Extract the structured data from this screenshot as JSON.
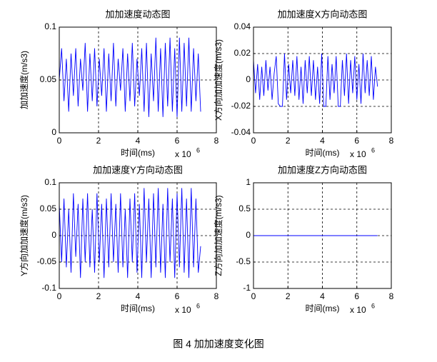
{
  "caption": "图 4  加加速度变化图",
  "chart_data": [
    {
      "type": "line",
      "title": "加加速度动态图",
      "xlabel": "时间(ms)",
      "ylabel": "加加速度(m/s3)",
      "x_multiplier": "x 10",
      "x_exponent": "6",
      "xlim": [
        0,
        8
      ],
      "xticks": [
        0,
        2,
        4,
        6,
        8
      ],
      "ylim": [
        0,
        0.1
      ],
      "yticks": [
        0,
        0.05,
        0.1
      ],
      "grid": true,
      "color": "#0000ff",
      "x": [
        0,
        0.12,
        0.24,
        0.36,
        0.48,
        0.6,
        0.72,
        0.84,
        0.96,
        1.08,
        1.2,
        1.32,
        1.44,
        1.56,
        1.68,
        1.8,
        1.92,
        2.04,
        2.16,
        2.28,
        2.4,
        2.52,
        2.64,
        2.76,
        2.88,
        3,
        3.12,
        3.24,
        3.36,
        3.48,
        3.6,
        3.72,
        3.84,
        3.96,
        4.08,
        4.2,
        4.32,
        4.44,
        4.56,
        4.68,
        4.8,
        4.92,
        5.04,
        5.16,
        5.28,
        5.4,
        5.52,
        5.64,
        5.76,
        5.88,
        6,
        6.12,
        6.24,
        6.36,
        6.48,
        6.6,
        6.72,
        6.84,
        6.96,
        7.08,
        7.2
      ],
      "values": [
        0.05,
        0.08,
        0.03,
        0.07,
        0.02,
        0.075,
        0.035,
        0.08,
        0.025,
        0.07,
        0.04,
        0.085,
        0.02,
        0.075,
        0.03,
        0.08,
        0.025,
        0.07,
        0.035,
        0.08,
        0.02,
        0.075,
        0.03,
        0.085,
        0.025,
        0.07,
        0.04,
        0.08,
        0.02,
        0.075,
        0.03,
        0.085,
        0.025,
        0.07,
        0.035,
        0.08,
        0.02,
        0.085,
        0.015,
        0.075,
        0.03,
        0.09,
        0.02,
        0.08,
        0.015,
        0.085,
        0.025,
        0.09,
        0.02,
        0.08,
        0.015,
        0.09,
        0.02,
        0.085,
        0.025,
        0.09,
        0.02,
        0.08,
        0.03,
        0.075,
        0.02
      ]
    },
    {
      "type": "line",
      "title": "加加速度X方向动态图",
      "xlabel": "时间(ms)",
      "ylabel": "X方向加加速度(m/s3)",
      "x_multiplier": "x 10",
      "x_exponent": "6",
      "xlim": [
        0,
        8
      ],
      "xticks": [
        0,
        2,
        4,
        6,
        8
      ],
      "ylim": [
        -0.04,
        0.04
      ],
      "yticks": [
        -0.04,
        -0.02,
        0,
        0.02,
        0.04
      ],
      "grid": true,
      "color": "#0000ff",
      "x": [
        0,
        0.12,
        0.24,
        0.36,
        0.48,
        0.6,
        0.72,
        0.84,
        0.96,
        1.08,
        1.2,
        1.32,
        1.44,
        1.56,
        1.68,
        1.8,
        1.92,
        2.04,
        2.16,
        2.28,
        2.4,
        2.52,
        2.64,
        2.76,
        2.88,
        3,
        3.12,
        3.24,
        3.36,
        3.48,
        3.6,
        3.72,
        3.84,
        3.96,
        4.08,
        4.2,
        4.32,
        4.44,
        4.56,
        4.68,
        4.8,
        4.92,
        5.04,
        5.16,
        5.28,
        5.4,
        5.52,
        5.64,
        5.76,
        5.88,
        6,
        6.12,
        6.24,
        6.36,
        6.48,
        6.6,
        6.72,
        6.84,
        6.96,
        7.08,
        7.2
      ],
      "values": [
        0.015,
        -0.01,
        0.012,
        -0.015,
        0.01,
        -0.012,
        0.015,
        -0.008,
        0.01,
        -0.015,
        0.005,
        0.018,
        -0.018,
        -0.02,
        -0.02,
        0.02,
        -0.015,
        0.012,
        -0.01,
        0.015,
        -0.012,
        0.018,
        -0.015,
        0.01,
        -0.018,
        0.015,
        -0.01,
        0.018,
        -0.012,
        0.015,
        -0.015,
        0.01,
        -0.018,
        0.02,
        -0.02,
        -0.02,
        0.018,
        -0.015,
        0.012,
        -0.01,
        0.018,
        -0.02,
        -0.02,
        0.015,
        -0.012,
        0.02,
        -0.018,
        0.015,
        -0.01,
        0.018,
        -0.015,
        0.012,
        -0.018,
        0.02,
        -0.01,
        0.015,
        -0.012,
        0.018,
        -0.015,
        0.01,
        -0.005
      ]
    },
    {
      "type": "line",
      "title": "加加速度Y方向动态图",
      "xlabel": "时间(ms)",
      "ylabel": "Y方向加加速度(m/s3)",
      "x_multiplier": "x 10",
      "x_exponent": "6",
      "xlim": [
        0,
        8
      ],
      "xticks": [
        0,
        2,
        4,
        6,
        8
      ],
      "ylim": [
        -0.1,
        0.1
      ],
      "yticks": [
        -0.1,
        -0.05,
        0,
        0.05,
        0.1
      ],
      "grid": true,
      "color": "#0000ff",
      "x": [
        0,
        0.12,
        0.24,
        0.36,
        0.48,
        0.6,
        0.72,
        0.84,
        0.96,
        1.08,
        1.2,
        1.32,
        1.44,
        1.56,
        1.68,
        1.8,
        1.92,
        2.04,
        2.16,
        2.28,
        2.4,
        2.52,
        2.64,
        2.76,
        2.88,
        3,
        3.12,
        3.24,
        3.36,
        3.48,
        3.6,
        3.72,
        3.84,
        3.96,
        4.08,
        4.2,
        4.32,
        4.44,
        4.56,
        4.68,
        4.8,
        4.92,
        5.04,
        5.16,
        5.28,
        5.4,
        5.52,
        5.64,
        5.76,
        5.88,
        6,
        6.12,
        6.24,
        6.36,
        6.48,
        6.6,
        6.72,
        6.84,
        6.96,
        7.08,
        7.2
      ],
      "values": [
        0.06,
        -0.05,
        0.07,
        -0.06,
        0.05,
        -0.07,
        0.08,
        -0.04,
        0.06,
        -0.08,
        0.07,
        -0.05,
        0.08,
        -0.06,
        0.05,
        -0.07,
        0.08,
        -0.05,
        0.06,
        -0.08,
        0.07,
        -0.06,
        0.08,
        -0.05,
        0.06,
        -0.07,
        0.08,
        -0.06,
        0.05,
        -0.08,
        0.07,
        -0.05,
        0.08,
        -0.07,
        0.06,
        -0.08,
        0.09,
        -0.05,
        0.07,
        -0.08,
        0.08,
        -0.06,
        0.09,
        -0.07,
        0.06,
        -0.08,
        0.09,
        -0.05,
        0.07,
        -0.08,
        0.08,
        -0.06,
        0.09,
        -0.07,
        0.07,
        -0.08,
        0.09,
        -0.06,
        0.07,
        -0.07,
        -0.02
      ]
    },
    {
      "type": "line",
      "title": "加加速度Z方向动态图",
      "xlabel": "时间(ms)",
      "ylabel": "Z方向加加速度(m/s3)",
      "x_multiplier": "x 10",
      "x_exponent": "6",
      "xlim": [
        0,
        8
      ],
      "xticks": [
        0,
        2,
        4,
        6,
        8
      ],
      "ylim": [
        -1,
        1
      ],
      "yticks": [
        -1,
        -0.5,
        0,
        0.5,
        1
      ],
      "grid": true,
      "color": "#0000ff",
      "x": [
        0,
        7.2
      ],
      "values": [
        0,
        0
      ]
    }
  ]
}
